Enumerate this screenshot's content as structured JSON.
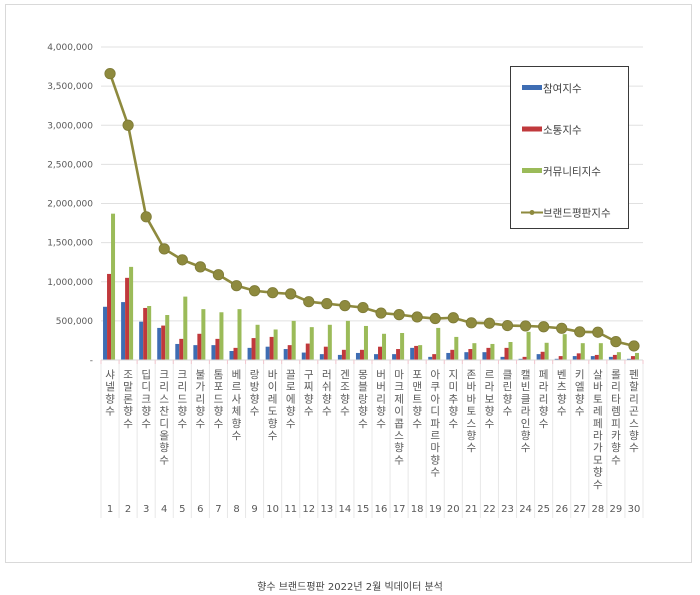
{
  "caption": "향수 브랜드평판  2022년 2월 빅데이터 분석",
  "colors": {
    "participation": "#3e6db3",
    "communication": "#c0393c",
    "community": "#9bbb59",
    "brand_reputation": "#8e8a3e",
    "gridline": "#e0e0e0",
    "category_border": "#f2c7cf"
  },
  "chart_data": {
    "type": "bar",
    "combo_line_series": "브랜드평판지수",
    "title": "",
    "xlabel": "",
    "ylabel": "",
    "ylim": [
      0,
      4000000
    ],
    "yticks": [
      "-",
      "500,000",
      "1,000,000",
      "1,500,000",
      "2,000,000",
      "2,500,000",
      "3,000,000",
      "3,500,000",
      "4,000,000"
    ],
    "grid": true,
    "legend_position": "upper-right-inside",
    "ranks": [
      1,
      2,
      3,
      4,
      5,
      6,
      7,
      8,
      9,
      10,
      11,
      12,
      13,
      14,
      15,
      16,
      17,
      18,
      19,
      20,
      21,
      22,
      23,
      24,
      25,
      26,
      27,
      28,
      29,
      30
    ],
    "categories": [
      "샤넬향수",
      "조말론향수",
      "딥디크향수",
      "크리스찬디올향수",
      "크리드향수",
      "불가리향수",
      "톰포드향수",
      "베르사체향수",
      "랑방향수",
      "바이레도향수",
      "끌로에향수",
      "구찌향수",
      "러쉬향수",
      "겐조향수",
      "몽블랑향수",
      "버버리향수",
      "마크제이콥스향수",
      "포맨트향수",
      "아쿠아디파르마향수",
      "지미추향수",
      "존바바토스향수",
      "르라보향수",
      "클린향수",
      "캘빈클라인향수",
      "페라리향수",
      "벤츠향수",
      "키엘향수",
      "살바토레페라가모향수",
      "롤리타렘피카향수",
      "펜할리곤스향수"
    ],
    "series": [
      {
        "name": "참여지수",
        "kind": "bar",
        "values": [
          680000,
          740000,
          490000,
          410000,
          205000,
          190000,
          190000,
          115000,
          155000,
          170000,
          140000,
          95000,
          75000,
          65000,
          90000,
          75000,
          75000,
          155000,
          40000,
          90000,
          100000,
          100000,
          40000,
          15000,
          75000,
          15000,
          50000,
          50000,
          40000,
          15000
        ]
      },
      {
        "name": "소통지수",
        "kind": "bar",
        "values": [
          1100000,
          1050000,
          665000,
          440000,
          270000,
          335000,
          270000,
          155000,
          280000,
          295000,
          190000,
          210000,
          170000,
          130000,
          130000,
          170000,
          140000,
          180000,
          75000,
          130000,
          140000,
          155000,
          155000,
          40000,
          105000,
          50000,
          85000,
          65000,
          65000,
          50000
        ]
      },
      {
        "name": "커뮤니티지수",
        "kind": "bar",
        "values": [
          1870000,
          1190000,
          690000,
          575000,
          810000,
          650000,
          610000,
          650000,
          450000,
          390000,
          500000,
          420000,
          450000,
          500000,
          435000,
          335000,
          345000,
          190000,
          410000,
          295000,
          215000,
          205000,
          230000,
          360000,
          220000,
          330000,
          215000,
          215000,
          100000,
          90000
        ]
      },
      {
        "name": "브랜드평판지수",
        "kind": "line",
        "values": [
          3660000,
          3000000,
          1830000,
          1420000,
          1280000,
          1190000,
          1090000,
          950000,
          885000,
          860000,
          845000,
          745000,
          720000,
          695000,
          670000,
          600000,
          580000,
          550000,
          530000,
          540000,
          475000,
          470000,
          440000,
          435000,
          425000,
          405000,
          360000,
          355000,
          235000,
          180000
        ]
      }
    ]
  }
}
